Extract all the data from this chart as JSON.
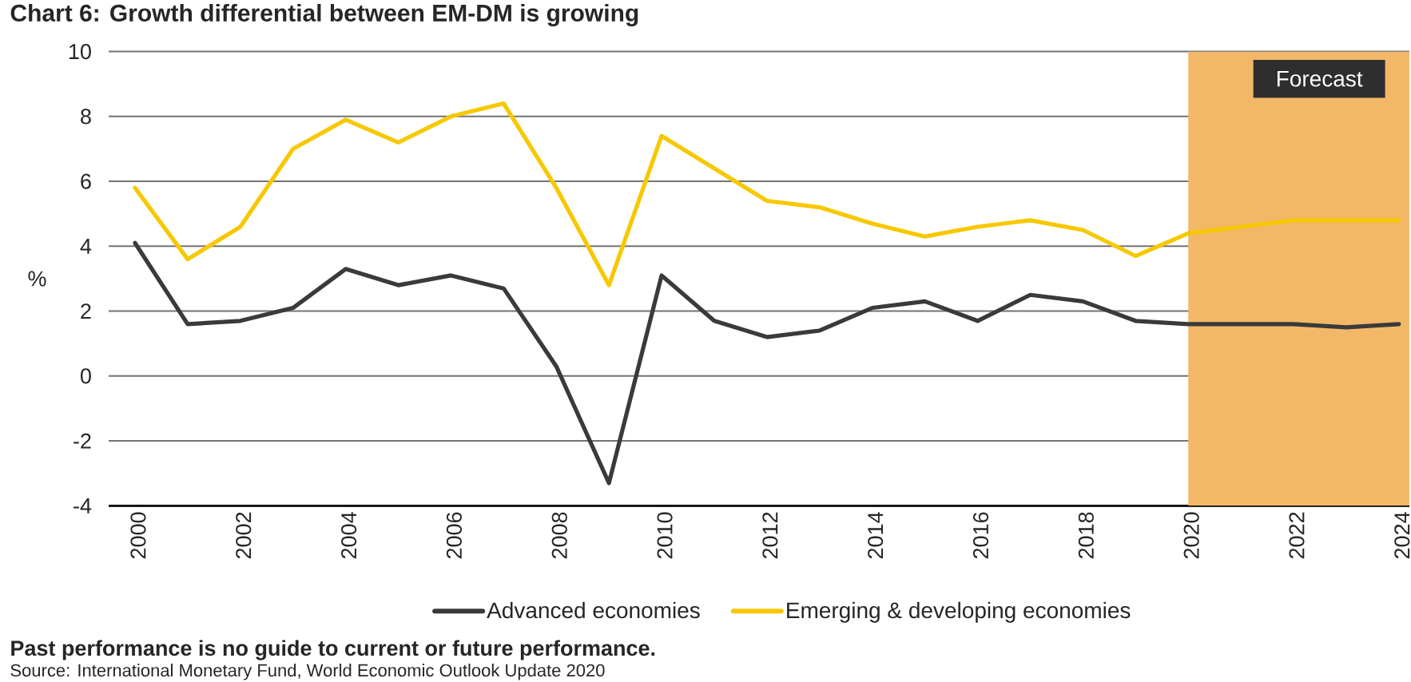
{
  "chart_data": {
    "type": "line",
    "title": "Chart 6: Growth differential between EM-DM is growing",
    "ylabel": "%",
    "x": [
      2000,
      2001,
      2002,
      2003,
      2004,
      2005,
      2006,
      2007,
      2008,
      2009,
      2010,
      2011,
      2012,
      2013,
      2014,
      2015,
      2016,
      2017,
      2018,
      2019,
      2020,
      2021,
      2022,
      2023,
      2024
    ],
    "series": [
      {
        "name": "Advanced economies",
        "color": "#3a3a3a",
        "values": [
          4.1,
          1.6,
          1.7,
          2.1,
          3.3,
          2.8,
          3.1,
          2.7,
          0.3,
          -3.3,
          3.1,
          1.7,
          1.2,
          1.4,
          2.1,
          2.3,
          1.7,
          2.5,
          2.3,
          1.7,
          1.6,
          1.6,
          1.6,
          1.5,
          1.6
        ]
      },
      {
        "name": "Emerging & developing economies",
        "color": "#f7c800",
        "values": [
          5.8,
          3.6,
          4.6,
          7.0,
          7.9,
          7.2,
          8.0,
          8.4,
          5.8,
          2.8,
          7.4,
          6.4,
          5.4,
          5.2,
          4.7,
          4.3,
          4.6,
          4.8,
          4.5,
          3.7,
          4.4,
          4.6,
          4.8,
          4.8,
          4.8
        ]
      }
    ],
    "xlim": [
      1999.5,
      2024.2
    ],
    "ylim": [
      -4,
      10
    ],
    "xticks": [
      2000,
      2002,
      2004,
      2006,
      2008,
      2010,
      2012,
      2014,
      2016,
      2018,
      2020,
      2022,
      2024
    ],
    "yticks": [
      -4,
      -2,
      0,
      2,
      4,
      6,
      8,
      10
    ],
    "grid": "y",
    "legend": "bottom",
    "bands": [
      {
        "axis": "x",
        "from": 2020,
        "to": 2024.2,
        "label": "Forecast",
        "color": "#f2b868"
      }
    ],
    "annotations": [
      "Past performance is no guide to current or future performance.",
      "Source: International Monetary Fund, World Economic Outlook Update 2020"
    ]
  }
}
